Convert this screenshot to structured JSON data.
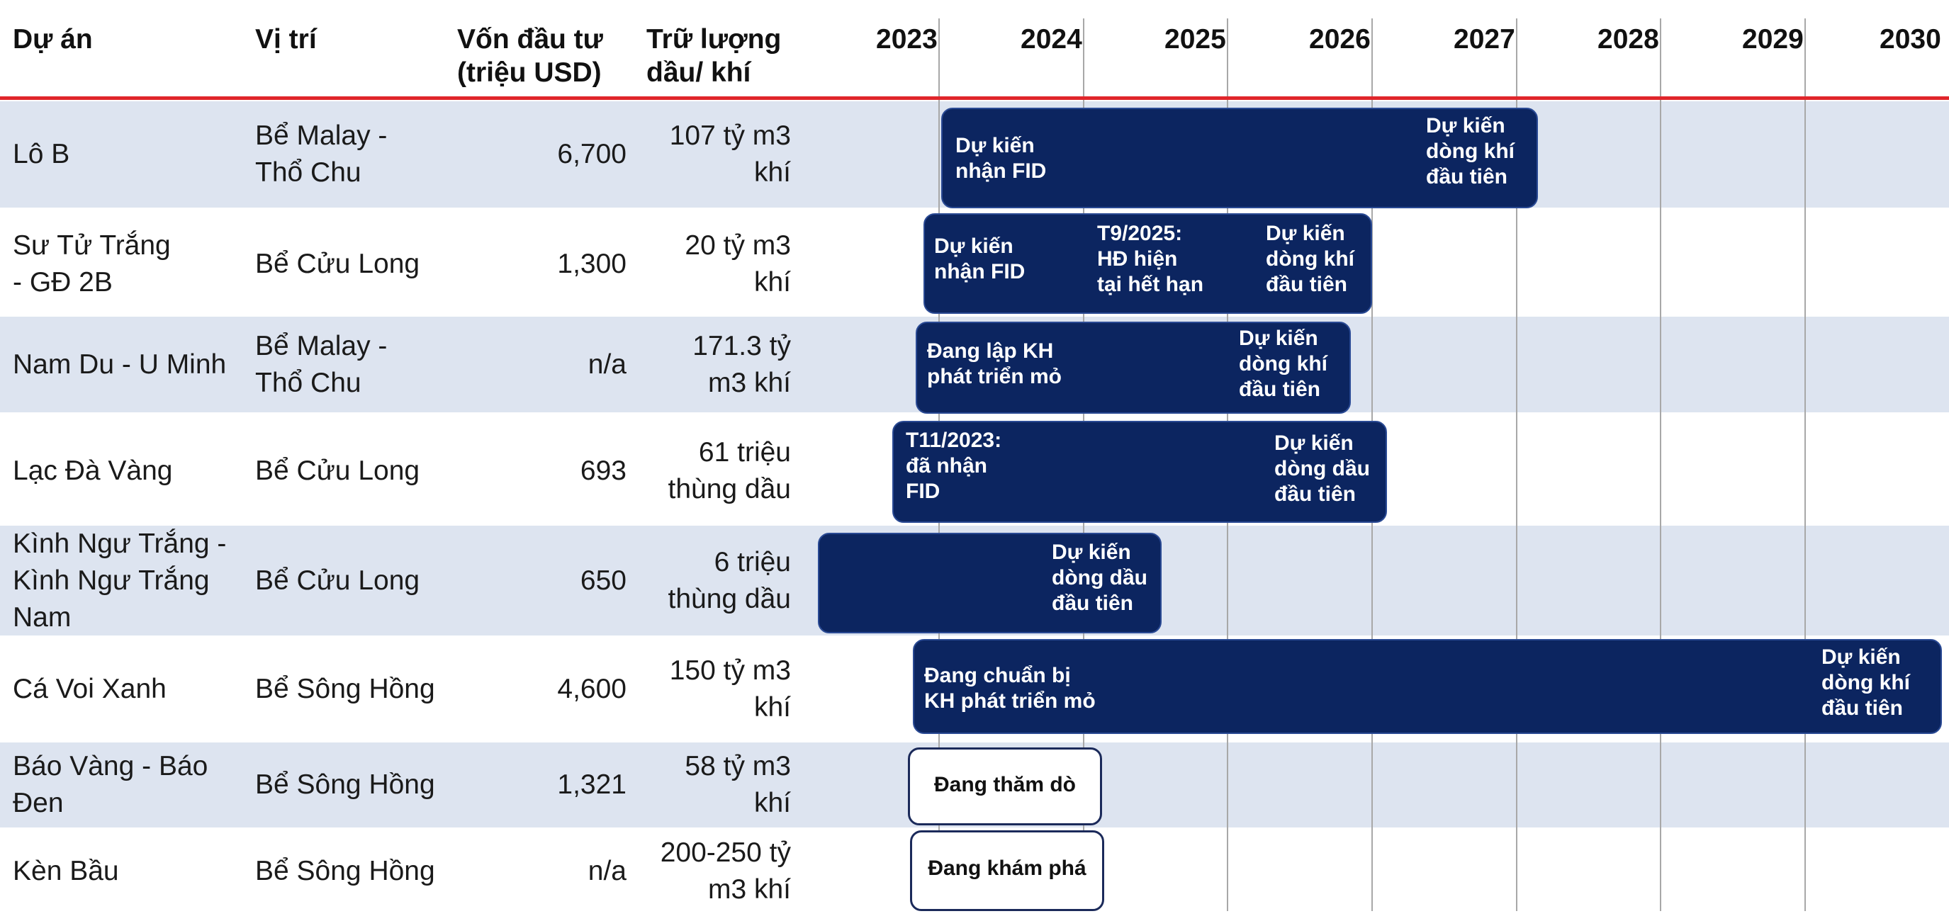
{
  "header": {
    "project": "Dự án",
    "location": "Vị trí",
    "capital": "Vốn đầu tư\n(triệu USD)",
    "reserves": "Trữ lượng\ndầu/ khí",
    "years": [
      "2023",
      "2024",
      "2025",
      "2026",
      "2027",
      "2028",
      "2029",
      "2030"
    ]
  },
  "rows": [
    {
      "project": "Lô B",
      "location": "Bể Malay -\nThổ Chu",
      "capital": "6,700",
      "reserves": "107 tỷ m3\nkhí",
      "labels": [
        "Dự kiến\nnhận FID",
        "Dự kiến\ndòng khí\nđầu tiên"
      ]
    },
    {
      "project": "Sư Tử Trắng\n- GĐ 2B",
      "location": "Bể Cửu Long",
      "capital": "1,300",
      "reserves": "20 tỷ m3\nkhí",
      "labels": [
        "Dự kiến\nnhận FID",
        "T9/2025:\nHĐ hiện\ntại hết hạn",
        "Dự kiến\ndòng khí\nđầu tiên"
      ]
    },
    {
      "project": "Nam Du - U Minh",
      "location": "Bể Malay -\nThổ Chu",
      "capital": "n/a",
      "reserves": "171.3 tỷ\nm3 khí",
      "labels": [
        "Đang lập KH\nphát triển mỏ",
        "Dự kiến\ndòng khí\nđầu tiên"
      ]
    },
    {
      "project": "Lạc Đà Vàng",
      "location": "Bể Cửu Long",
      "capital": "693",
      "reserves": "61 triệu\nthùng dầu",
      "labels": [
        "T11/2023:\nđã nhận\nFID",
        "Dự kiến\ndòng dầu\nđầu tiên"
      ]
    },
    {
      "project": "Kình Ngư Trắng -\nKình Ngư Trắng\nNam",
      "location": "Bể Cửu Long",
      "capital": "650",
      "reserves": "6 triệu\nthùng dầu",
      "labels": [
        "Dự kiến\ndòng dầu\nđầu tiên"
      ]
    },
    {
      "project": "Cá Voi Xanh",
      "location": "Bể Sông Hồng",
      "capital": "4,600",
      "reserves": "150 tỷ m3\nkhí",
      "labels": [
        "Đang chuẩn bị\nKH phát triển mỏ",
        "Dự kiến\ndòng khí\nđầu tiên"
      ]
    },
    {
      "project": "Báo Vàng - Báo\nĐen",
      "location": "Bể Sông Hồng",
      "capital": "1,321",
      "reserves": "58 tỷ m3\nkhí",
      "labels": [
        "Đang thăm dò"
      ]
    },
    {
      "project": "Kèn Bầu",
      "location": "Bể Sông Hồng",
      "capital": "n/a",
      "reserves": "200-250 tỷ\nm3 khí",
      "labels": [
        "Đang khám phá"
      ]
    }
  ],
  "colors": {
    "bar_fill": "#0c2560",
    "row_shade": "#dde4f0",
    "header_rule": "#e0262b",
    "grid": "#a8a8a8"
  }
}
